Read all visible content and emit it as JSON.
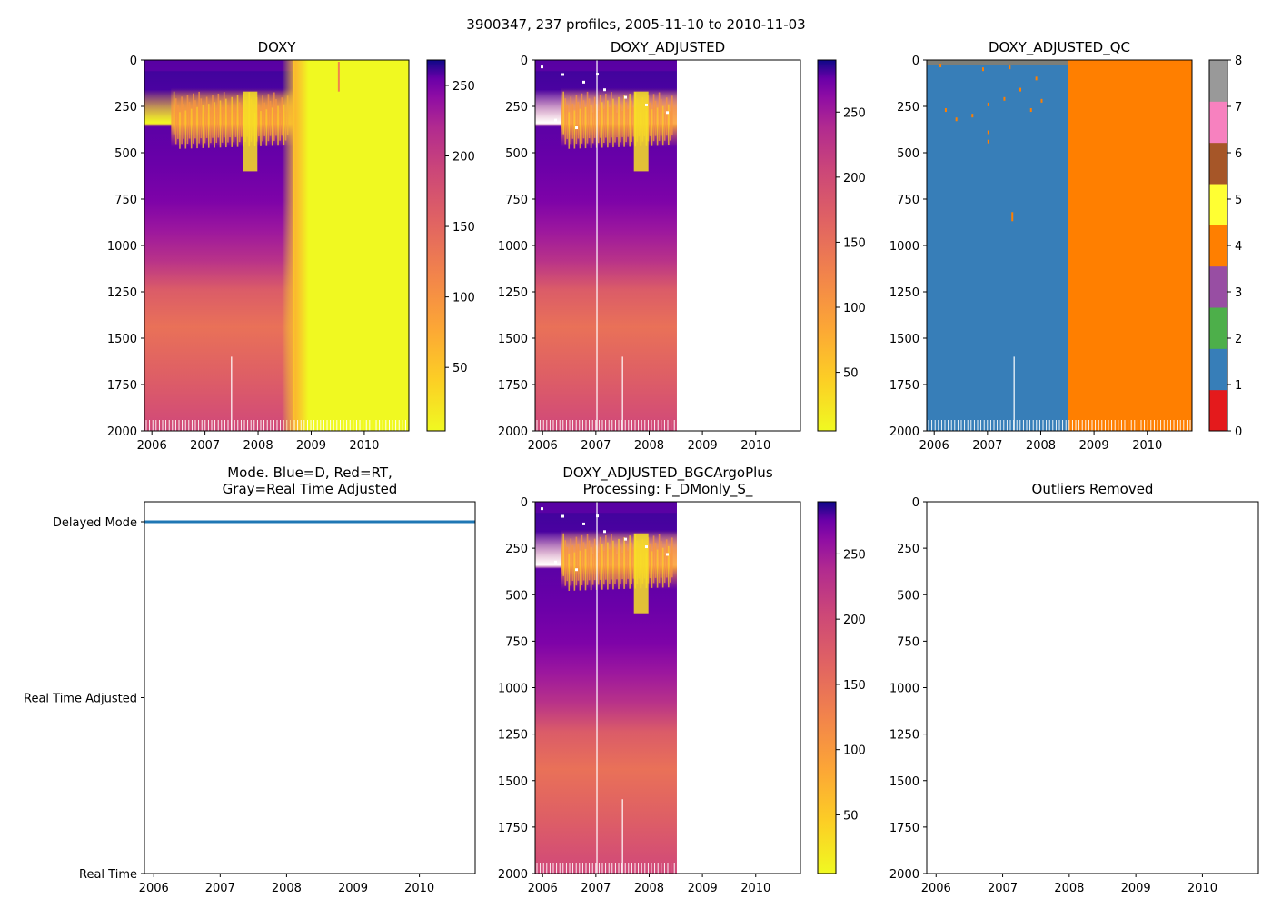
{
  "suptitle": "3900347, 237 profiles, 2005-11-10 to 2010-11-03",
  "chart_data": [
    {
      "id": "doxy",
      "type": "heatmap",
      "title": "DOXY",
      "x_ticks": [
        "2006",
        "2007",
        "2008",
        "2009",
        "2010"
      ],
      "xlim": [
        2005.86,
        2010.84
      ],
      "ylim": [
        2000,
        0
      ],
      "y_ticks": [
        0,
        250,
        500,
        750,
        1000,
        1250,
        1500,
        1750,
        2000
      ],
      "data_extent": [
        2005.86,
        2010.84
      ],
      "colorbar": {
        "colormap": "plasma_r",
        "range": [
          5,
          268
        ],
        "ticks": [
          50,
          100,
          150,
          200,
          250
        ]
      }
    },
    {
      "id": "doxy_adjusted",
      "type": "heatmap",
      "title": "DOXY_ADJUSTED",
      "x_ticks": [
        "2006",
        "2007",
        "2008",
        "2009",
        "2010"
      ],
      "xlim": [
        2005.86,
        2010.84
      ],
      "ylim": [
        2000,
        0
      ],
      "y_ticks": [
        0,
        250,
        500,
        750,
        1000,
        1250,
        1500,
        1750,
        2000
      ],
      "data_extent": [
        2005.86,
        2008.52
      ],
      "colorbar": {
        "colormap": "plasma_r",
        "range": [
          5,
          290
        ],
        "ticks": [
          50,
          100,
          150,
          200,
          250
        ]
      }
    },
    {
      "id": "doxy_adjusted_qc",
      "type": "heatmap",
      "title": "DOXY_ADJUSTED_QC",
      "x_ticks": [
        "2006",
        "2007",
        "2008",
        "2009",
        "2010"
      ],
      "xlim": [
        2005.86,
        2010.84
      ],
      "ylim": [
        2000,
        0
      ],
      "y_ticks": [
        0,
        250,
        500,
        750,
        1000,
        1250,
        1500,
        1750,
        2000
      ],
      "qc_regions": [
        {
          "from": 2005.86,
          "to": 2008.52,
          "flag": 1
        },
        {
          "from": 2008.52,
          "to": 2010.84,
          "flag": 4
        }
      ],
      "colorbar": {
        "type": "categorical",
        "range": [
          0,
          8
        ],
        "ticks": [
          0,
          1,
          2,
          3,
          4,
          5,
          6,
          7,
          8
        ],
        "colors": [
          "#e41a1c",
          "#377eb8",
          "#4daf4a",
          "#984ea3",
          "#ff7f00",
          "#ffff33",
          "#a65628",
          "#f781bf",
          "#999999"
        ]
      }
    },
    {
      "id": "mode",
      "type": "line",
      "title_lines": [
        "Mode. Blue=D, Red=RT,",
        "Gray=Real Time Adjusted"
      ],
      "x_ticks": [
        "2006",
        "2007",
        "2008",
        "2009",
        "2010"
      ],
      "xlim": [
        2005.86,
        2010.84
      ],
      "y_categories": [
        "Delayed Mode",
        "Real Time Adjusted",
        "Real Time"
      ],
      "series": [
        {
          "name": "Delayed Mode",
          "color": "#1f77b4",
          "x_range": [
            2005.86,
            2010.84
          ],
          "y": "Delayed Mode"
        }
      ]
    },
    {
      "id": "doxy_adjusted_bgc",
      "type": "heatmap",
      "title_lines": [
        "DOXY_ADJUSTED_BGCArgoPlus",
        "Processing: F_DMonly_S_"
      ],
      "x_ticks": [
        "2006",
        "2007",
        "2008",
        "2009",
        "2010"
      ],
      "xlim": [
        2005.86,
        2010.84
      ],
      "ylim": [
        2000,
        0
      ],
      "y_ticks": [
        0,
        250,
        500,
        750,
        1000,
        1250,
        1500,
        1750,
        2000
      ],
      "data_extent": [
        2005.86,
        2008.52
      ],
      "colorbar": {
        "colormap": "plasma_r",
        "range": [
          5,
          290
        ],
        "ticks": [
          50,
          100,
          150,
          200,
          250
        ]
      }
    },
    {
      "id": "outliers",
      "type": "scatter",
      "title": "Outliers Removed",
      "x_ticks": [
        "2006",
        "2007",
        "2008",
        "2009",
        "2010"
      ],
      "xlim": [
        2005.86,
        2010.84
      ],
      "ylim": [
        2000,
        0
      ],
      "y_ticks": [
        0,
        250,
        500,
        750,
        1000,
        1250,
        1500,
        1750,
        2000
      ],
      "points": []
    }
  ]
}
